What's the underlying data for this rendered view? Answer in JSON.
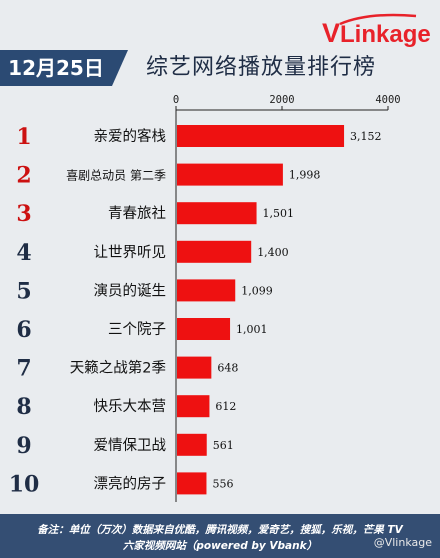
{
  "brand": {
    "logo_text": "VLinkage"
  },
  "header": {
    "date": "12月25日",
    "title": "综艺网络播放量排行榜"
  },
  "footer": {
    "line1": "备注：单位（万次）数据来自优酷，腾讯视频，爱奇艺，搜狐，乐视，芒果 TV",
    "line2": "六家视频网站（powered by Vbank）",
    "weibo": "@Vlinkage"
  },
  "colors": {
    "bar": "#ee1111",
    "header_bg": "#2b4a73",
    "footer_bg": "#344e73",
    "rank_top3": "#cc1111",
    "rank_other": "#1f2d45"
  },
  "chart_data": {
    "type": "bar",
    "orientation": "horizontal",
    "title": "综艺网络播放量排行榜",
    "xlim": [
      0,
      4000
    ],
    "x_ticks": [
      "0",
      "2000",
      "4000"
    ],
    "ranks": [
      "1",
      "2",
      "3",
      "4",
      "5",
      "6",
      "7",
      "8",
      "9",
      "10"
    ],
    "categories": [
      "亲爱的客栈",
      "喜剧总动员 第二季",
      "青春旅社",
      "让世界听见",
      "演员的诞生",
      "三个院子",
      "天籁之战第2季",
      "快乐大本营",
      "爱情保卫战",
      "漂亮的房子"
    ],
    "values": [
      3152,
      1998,
      1501,
      1400,
      1099,
      1001,
      648,
      612,
      561,
      556
    ],
    "value_labels": [
      "3,152",
      "1,998",
      "1,501",
      "1,400",
      "1,099",
      "1,001",
      "648",
      "612",
      "561",
      "556"
    ]
  }
}
